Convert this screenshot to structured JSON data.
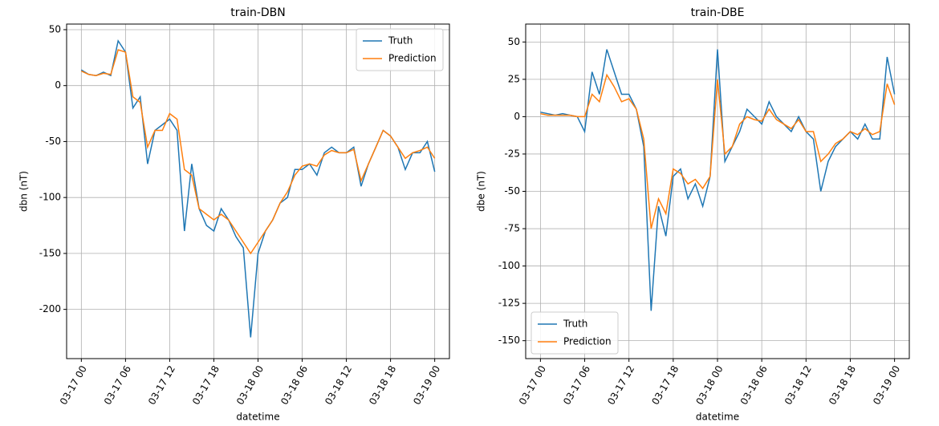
{
  "chart_data": [
    {
      "type": "line",
      "title": "train-DBN",
      "x_label": "datetime",
      "y_label": "dbn (nT)",
      "x": [
        "03-17 00",
        "03-17 01",
        "03-17 02",
        "03-17 03",
        "03-17 04",
        "03-17 05",
        "03-17 06",
        "03-17 07",
        "03-17 08",
        "03-17 09",
        "03-17 10",
        "03-17 11",
        "03-17 12",
        "03-17 13",
        "03-17 14",
        "03-17 15",
        "03-17 16",
        "03-17 17",
        "03-17 18",
        "03-17 19",
        "03-17 20",
        "03-17 21",
        "03-17 22",
        "03-17 23",
        "03-18 00",
        "03-18 01",
        "03-18 02",
        "03-18 03",
        "03-18 04",
        "03-18 05",
        "03-18 06",
        "03-18 07",
        "03-18 08",
        "03-18 09",
        "03-18 10",
        "03-18 11",
        "03-18 12",
        "03-18 13",
        "03-18 14",
        "03-18 15",
        "03-18 16",
        "03-18 17",
        "03-18 18",
        "03-18 19",
        "03-18 20",
        "03-18 21",
        "03-18 22",
        "03-18 23",
        "03-19 00"
      ],
      "series": [
        {
          "name": "Truth",
          "color": "#1f77b4",
          "values": [
            14,
            10,
            9,
            12,
            9,
            40,
            30,
            -20,
            -10,
            -70,
            -40,
            -35,
            -30,
            -40,
            -130,
            -70,
            -110,
            -125,
            -130,
            -110,
            -120,
            -135,
            -145,
            -225,
            -150,
            -130,
            -120,
            -105,
            -100,
            -75,
            -75,
            -70,
            -80,
            -60,
            -55,
            -60,
            -60,
            -55,
            -90,
            -70,
            -55,
            -40,
            -45,
            -55,
            -75,
            -60,
            -60,
            -50,
            -77
          ]
        },
        {
          "name": "Prediction",
          "color": "#ff7f0e",
          "values": [
            13,
            10,
            9,
            11,
            10,
            32,
            30,
            -10,
            -15,
            -55,
            -40,
            -40,
            -25,
            -30,
            -75,
            -80,
            -110,
            -115,
            -120,
            -115,
            -120,
            -130,
            -140,
            -150,
            -140,
            -130,
            -120,
            -105,
            -95,
            -80,
            -72,
            -70,
            -72,
            -62,
            -58,
            -60,
            -60,
            -57,
            -85,
            -70,
            -55,
            -40,
            -45,
            -55,
            -65,
            -60,
            -58,
            -55,
            -65
          ]
        }
      ],
      "xlim": [
        "03-16 22",
        "03-19 02"
      ],
      "xticks": [
        "03-17 00",
        "03-17 06",
        "03-17 12",
        "03-17 18",
        "03-18 00",
        "03-18 06",
        "03-18 12",
        "03-18 18",
        "03-19 00"
      ],
      "ylim": [
        -244,
        55
      ],
      "yticks": [
        -200,
        -150,
        -100,
        -50,
        0,
        50
      ],
      "grid": true,
      "legend": "upper right"
    },
    {
      "type": "line",
      "title": "train-DBE",
      "x_label": "datetime",
      "y_label": "dbe (nT)",
      "x": [
        "03-17 00",
        "03-17 01",
        "03-17 02",
        "03-17 03",
        "03-17 04",
        "03-17 05",
        "03-17 06",
        "03-17 07",
        "03-17 08",
        "03-17 09",
        "03-17 10",
        "03-17 11",
        "03-17 12",
        "03-17 13",
        "03-17 14",
        "03-17 15",
        "03-17 16",
        "03-17 17",
        "03-17 18",
        "03-17 19",
        "03-17 20",
        "03-17 21",
        "03-17 22",
        "03-17 23",
        "03-18 00",
        "03-18 01",
        "03-18 02",
        "03-18 03",
        "03-18 04",
        "03-18 05",
        "03-18 06",
        "03-18 07",
        "03-18 08",
        "03-18 09",
        "03-18 10",
        "03-18 11",
        "03-18 12",
        "03-18 13",
        "03-18 14",
        "03-18 15",
        "03-18 16",
        "03-18 17",
        "03-18 18",
        "03-18 19",
        "03-18 20",
        "03-18 21",
        "03-18 22",
        "03-18 23",
        "03-19 00"
      ],
      "series": [
        {
          "name": "Truth",
          "color": "#1f77b4",
          "values": [
            3,
            2,
            1,
            2,
            1,
            0,
            -10,
            30,
            15,
            45,
            30,
            15,
            15,
            5,
            -20,
            -130,
            -60,
            -80,
            -40,
            -35,
            -55,
            -45,
            -60,
            -40,
            45,
            -30,
            -20,
            -10,
            5,
            0,
            -5,
            10,
            0,
            -5,
            -10,
            0,
            -10,
            -15,
            -50,
            -30,
            -20,
            -15,
            -10,
            -15,
            -5,
            -15,
            -15,
            40,
            15
          ]
        },
        {
          "name": "Prediction",
          "color": "#ff7f0e",
          "values": [
            2,
            1,
            1,
            1,
            1,
            0,
            0,
            15,
            10,
            28,
            20,
            10,
            12,
            5,
            -15,
            -75,
            -55,
            -65,
            -35,
            -38,
            -45,
            -42,
            -48,
            -40,
            25,
            -25,
            -20,
            -5,
            0,
            -2,
            -3,
            5,
            -2,
            -5,
            -8,
            -2,
            -10,
            -10,
            -30,
            -25,
            -18,
            -15,
            -10,
            -12,
            -8,
            -12,
            -10,
            22,
            8
          ]
        }
      ],
      "xlim": [
        "03-16 22",
        "03-19 02"
      ],
      "xticks": [
        "03-17 00",
        "03-17 06",
        "03-17 12",
        "03-17 18",
        "03-18 00",
        "03-18 06",
        "03-18 12",
        "03-18 18",
        "03-19 00"
      ],
      "ylim": [
        -162,
        62
      ],
      "yticks": [
        -150,
        -125,
        -100,
        -75,
        -50,
        -25,
        0,
        25,
        50
      ],
      "grid": true,
      "legend": "lower left"
    }
  ]
}
